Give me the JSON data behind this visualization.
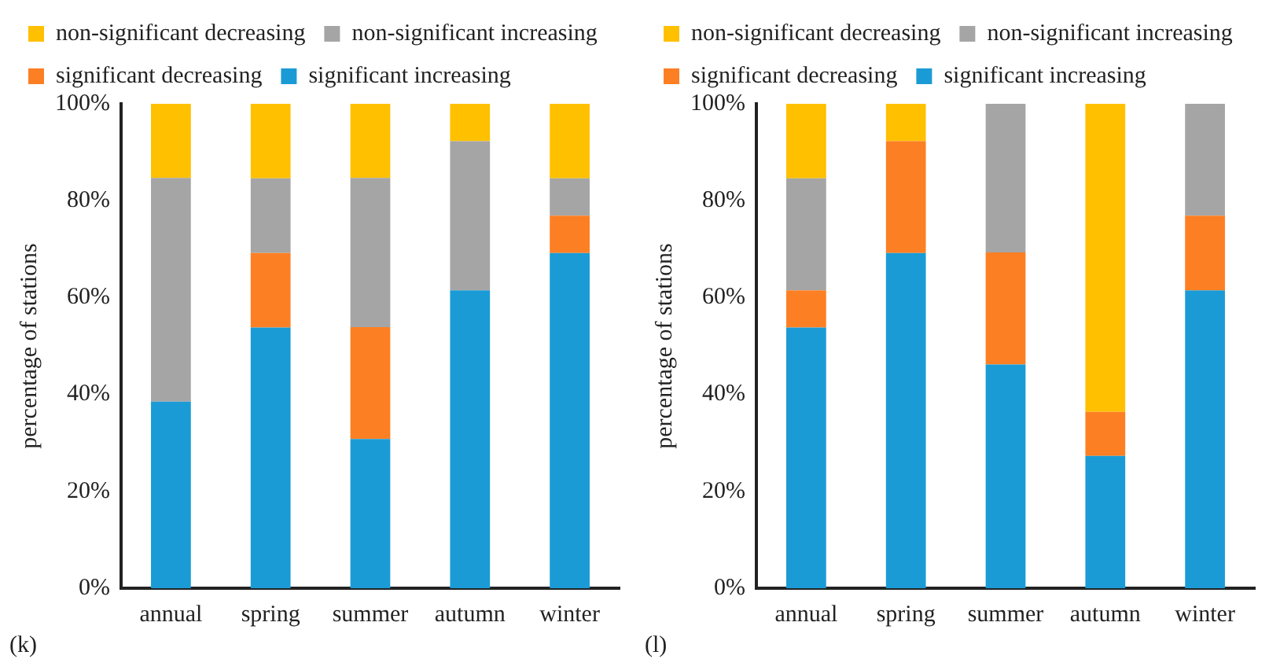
{
  "chart_data": [
    {
      "type": "bar",
      "stacked": true,
      "annotations": [
        "(k)"
      ],
      "ylabel": "percentage of stations",
      "categories": [
        "annual",
        "spring",
        "summer",
        "autumn",
        "winter"
      ],
      "ylim": [
        0,
        100
      ],
      "yticks": [
        {
          "value": 0,
          "label": "0%"
        },
        {
          "value": 20,
          "label": "20%"
        },
        {
          "value": 40,
          "label": "40%"
        },
        {
          "value": 60,
          "label": "60%"
        },
        {
          "value": 80,
          "label": "80%"
        },
        {
          "value": 100,
          "label": "100%"
        }
      ],
      "grid": false,
      "legend": "top",
      "series": [
        {
          "name": "significant increasing",
          "color": "#1a9bd6",
          "values": [
            38.5,
            53.8,
            30.8,
            61.5,
            69.2
          ]
        },
        {
          "name": "significant decreasing",
          "color": "#fd7f23",
          "values": [
            0,
            15.4,
            23.1,
            0,
            7.7
          ]
        },
        {
          "name": "non-significant increasing",
          "color": "#a5a5a5",
          "values": [
            46.2,
            15.4,
            30.8,
            30.8,
            7.7
          ]
        },
        {
          "name": "non-significant decreasing",
          "color": "#ffc000",
          "values": [
            15.4,
            15.4,
            15.4,
            7.7,
            15.4
          ]
        }
      ]
    },
    {
      "type": "bar",
      "stacked": true,
      "annotations": [
        "(l)"
      ],
      "ylabel": "percentage of stations",
      "categories": [
        "annual",
        "spring",
        "summer",
        "autumn",
        "winter"
      ],
      "ylim": [
        0,
        100
      ],
      "yticks": [
        {
          "value": 0,
          "label": "0%"
        },
        {
          "value": 20,
          "label": "20%"
        },
        {
          "value": 40,
          "label": "40%"
        },
        {
          "value": 60,
          "label": "60%"
        },
        {
          "value": 80,
          "label": "80%"
        },
        {
          "value": 100,
          "label": "100%"
        }
      ],
      "grid": false,
      "legend": "top",
      "series": [
        {
          "name": "significant increasing",
          "color": "#1a9bd6",
          "values": [
            53.8,
            69.2,
            46.2,
            27.3,
            61.5
          ]
        },
        {
          "name": "significant decreasing",
          "color": "#fd7f23",
          "values": [
            7.7,
            23.1,
            23.1,
            9.1,
            15.4
          ]
        },
        {
          "name": "non-significant increasing",
          "color": "#a5a5a5",
          "values": [
            23.1,
            0,
            30.8,
            0,
            23.1
          ]
        },
        {
          "name": "non-significant decreasing",
          "color": "#ffc000",
          "values": [
            15.4,
            7.7,
            0,
            63.6,
            0
          ]
        }
      ]
    }
  ]
}
